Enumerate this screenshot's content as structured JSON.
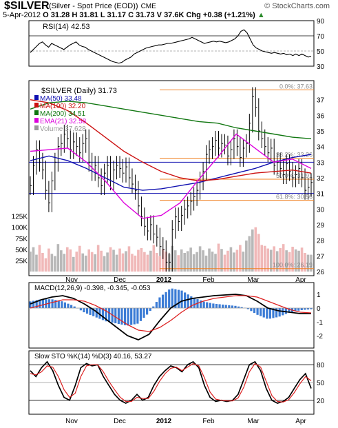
{
  "header": {
    "symbol": "$SILVER",
    "description": "(Silver - Spot Price (EOD))",
    "exchange": "CME",
    "brand": "© StockCharts.com",
    "date": "5-Apr-2012",
    "open": "O 31.28",
    "high": "H 31.81",
    "low": "L 31.17",
    "close": "C 31.73",
    "volume": "V 37.6K",
    "change": "Chg +0.38 (+1.21%)",
    "change_icon": "up-triangle-icon",
    "change_color": "#2a8a2a"
  },
  "chart_data": [
    {
      "type": "line",
      "panel": "rsi",
      "title": "RSI(14) 42.53",
      "ylim": [
        30,
        90
      ],
      "tick_labels": [
        "90",
        "70",
        "50",
        "30"
      ],
      "reference_lines": [
        70,
        50,
        30
      ],
      "series": [
        {
          "name": "RSI(14)",
          "color": "#000000",
          "values": [
            48,
            52,
            56,
            60,
            62,
            58,
            55,
            60,
            58,
            56,
            54,
            52,
            55,
            58,
            60,
            62,
            58,
            56,
            55,
            52,
            50,
            48,
            46,
            44,
            42,
            40,
            38,
            36,
            35,
            34,
            35,
            38,
            40,
            42,
            46,
            48,
            50,
            52,
            54,
            55,
            56,
            57,
            58,
            58,
            59,
            60,
            60,
            61,
            62,
            63,
            64,
            65,
            66,
            68,
            66,
            64,
            62,
            60,
            61,
            62,
            63,
            62,
            63,
            62,
            61,
            62,
            64,
            66,
            70,
            76,
            78,
            74,
            66,
            58,
            54,
            52,
            50,
            49,
            48,
            47,
            48,
            47,
            46,
            47,
            45,
            46,
            44,
            46,
            44,
            46,
            44,
            42,
            43
          ]
        }
      ]
    },
    {
      "type": "line",
      "panel": "price",
      "title": "$SILVER (Daily) 31.73",
      "ylim": [
        26,
        38
      ],
      "tick_labels": [
        "37",
        "36",
        "35",
        "34",
        "33",
        "32",
        "31",
        "30",
        "29",
        "28",
        "27",
        "26"
      ],
      "x_labels": [
        "Nov",
        "Dec",
        "2012",
        "Feb",
        "Mar",
        "Apr"
      ],
      "legend": [
        {
          "label": "MA(50) 33.48",
          "color": "#1010b0"
        },
        {
          "label": "MA(100) 32.20",
          "color": "#cc1111"
        },
        {
          "label": "MA(200) 34.51",
          "color": "#117711"
        },
        {
          "label": "EMA(21) 32.58",
          "color": "#dd00dd"
        },
        {
          "label": "Volume 37,628",
          "color": "#999999"
        }
      ],
      "fib_levels": [
        {
          "label": "0.0%: 37.63",
          "value": 37.63
        },
        {
          "label": "38.2%: 33.26",
          "value": 33.26
        },
        {
          "label": "50.0%: 31.91",
          "value": 31.91
        },
        {
          "label": "61.8%: 30.56",
          "value": 30.56
        },
        {
          "label": "100.0%: 26.19",
          "value": 26.19
        }
      ],
      "blue_levels": [
        33.0,
        31.0
      ],
      "close": [
        31.5,
        32.8,
        33.8,
        33.0,
        32.5,
        31.2,
        30.4,
        31.8,
        33.0,
        34.0,
        34.2,
        34.8,
        34.5,
        33.8,
        34.3,
        34.0,
        33.6,
        34.2,
        34.5,
        33.0,
        32.4,
        32.8,
        32.0,
        31.5,
        32.3,
        32.8,
        31.8,
        32.5,
        32.8,
        32.6,
        32.3,
        32.7,
        32.0,
        31.6,
        31.2,
        30.2,
        29.5,
        28.9,
        28.6,
        29.0,
        28.4,
        28.2,
        27.6,
        27.4,
        26.6,
        26.6,
        28.7,
        29.5,
        29.2,
        29.6,
        30.0,
        30.2,
        30.5,
        30.8,
        31.2,
        31.8,
        32.4,
        33.5,
        33.8,
        34.0,
        34.4,
        33.9,
        34.2,
        34.1,
        33.4,
        33.8,
        34.5,
        34.0,
        33.3,
        33.9,
        34.2,
        35.5,
        37.2,
        36.5,
        35.0,
        34.5,
        34.0,
        33.6,
        33.9,
        32.8,
        33.0,
        32.6,
        32.2,
        32.9,
        32.4,
        32.0,
        32.2,
        32.6,
        32.0,
        31.2,
        31.4,
        31.7
      ],
      "moving_averages": {
        "MA(50)": [
          33.1,
          33.4,
          33.1,
          32.6,
          32.0,
          31.4,
          31.2,
          31.3,
          31.5,
          31.7,
          32.0,
          32.3,
          32.6,
          33.0,
          33.3,
          33.5
        ],
        "MA(100)": [
          37.0,
          36.8,
          36.3,
          35.5,
          34.6,
          33.7,
          33.0,
          32.4,
          32.0,
          31.8,
          31.9,
          32.1,
          32.3,
          32.4,
          32.5,
          32.3
        ],
        "MA(200)": [
          36.4,
          36.8,
          36.9,
          36.8,
          36.6,
          36.4,
          36.2,
          36.0,
          35.8,
          35.6,
          35.5,
          35.2,
          35.0,
          34.8,
          34.6,
          34.5
        ],
        "EMA(21)": [
          33.7,
          33.8,
          33.9,
          33.0,
          31.8,
          30.4,
          29.4,
          29.6,
          30.4,
          31.9,
          33.3,
          34.8,
          33.9,
          33.0,
          33.2,
          32.6
        ]
      },
      "volume_axis": [
        "125K",
        "100K",
        "75K",
        "50K",
        "25K"
      ],
      "volume": [
        45,
        55,
        38,
        60,
        42,
        30,
        52,
        40,
        35,
        62,
        48,
        40,
        55,
        50,
        33,
        45,
        58,
        41,
        36,
        50,
        44,
        39,
        60,
        47,
        35,
        43,
        55,
        49,
        38,
        52,
        41,
        46,
        57,
        40,
        36,
        49,
        53,
        44,
        38,
        47,
        60,
        42,
        35,
        51,
        45,
        40,
        58,
        48,
        37,
        50,
        42,
        46,
        54,
        39,
        44,
        57,
        48,
        36,
        52,
        45,
        40,
        63,
        51,
        38,
        47,
        55,
        43,
        49,
        60,
        45,
        70,
        80,
        95,
        100,
        85,
        60,
        58,
        52,
        49,
        57,
        46,
        53,
        62,
        48,
        44,
        56,
        50,
        47,
        54,
        42,
        38,
        38
      ]
    },
    {
      "type": "line",
      "panel": "macd",
      "title": "MACD(12,26,9) -0.398, -0.345, -0.053",
      "ylim": [
        -2.5,
        1.5
      ],
      "tick_labels": [
        "1",
        "0",
        "-1",
        "-2"
      ],
      "series": [
        {
          "name": "MACD",
          "color": "#000000",
          "values": [
            0.3,
            0.6,
            0.8,
            0.9,
            0.7,
            0.3,
            -0.2,
            -0.8,
            -1.4,
            -2.0,
            -2.3,
            -1.9,
            -0.9,
            0.0,
            0.5,
            0.7,
            0.8,
            0.9,
            0.95,
            1.0,
            0.9,
            0.5,
            0.0,
            -0.2,
            -0.3,
            -0.4,
            -0.4
          ]
        },
        {
          "name": "Signal",
          "color": "#dd2222",
          "values": [
            0.0,
            0.2,
            0.4,
            0.6,
            0.6,
            0.5,
            0.2,
            -0.2,
            -0.7,
            -1.2,
            -1.6,
            -1.7,
            -1.4,
            -0.9,
            -0.3,
            0.2,
            0.5,
            0.7,
            0.8,
            0.9,
            0.9,
            0.8,
            0.5,
            0.2,
            -0.1,
            -0.3,
            -0.35
          ]
        }
      ],
      "histogram_color": "#3a7bd5"
    },
    {
      "type": "line",
      "panel": "sto",
      "title": "Slow STO %K(14) %D(3) 40.16, 53.27",
      "ylim": [
        0,
        100
      ],
      "tick_labels": [
        "80",
        "50",
        "20"
      ],
      "reference_lines": [
        80,
        50,
        20
      ],
      "series": [
        {
          "name": "%K",
          "color": "#000000",
          "values": [
            70,
            60,
            75,
            85,
            70,
            45,
            25,
            20,
            45,
            75,
            82,
            78,
            80,
            60,
            45,
            30,
            20,
            15,
            20,
            30,
            20,
            25,
            45,
            60,
            70,
            78,
            75,
            68,
            80,
            85,
            75,
            45,
            25,
            18,
            20,
            18,
            20,
            30,
            55,
            80,
            85,
            70,
            40,
            20,
            15,
            18,
            25,
            40,
            55,
            65,
            40
          ]
        },
        {
          "name": "%D",
          "color": "#dd2222",
          "values": [
            65,
            63,
            68,
            78,
            76,
            60,
            38,
            25,
            32,
            60,
            78,
            80,
            80,
            68,
            52,
            38,
            25,
            18,
            18,
            25,
            23,
            23,
            35,
            52,
            65,
            74,
            76,
            70,
            76,
            82,
            78,
            58,
            34,
            22,
            20,
            19,
            19,
            24,
            42,
            68,
            82,
            76,
            52,
            28,
            18,
            17,
            21,
            33,
            48,
            60,
            53
          ]
        }
      ]
    }
  ]
}
